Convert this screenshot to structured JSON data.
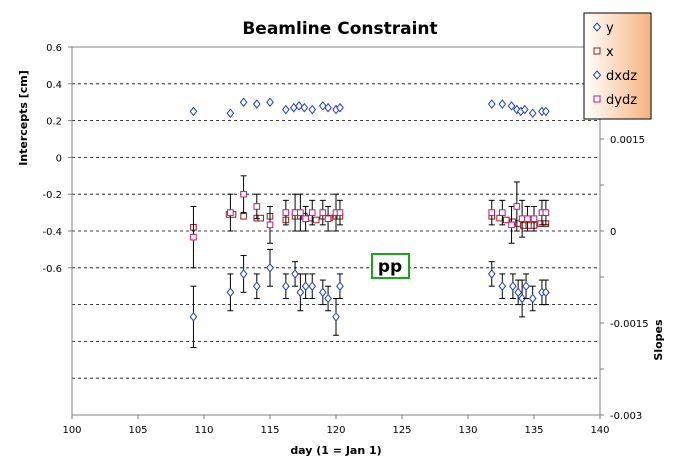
{
  "chart_data": {
    "type": "scatter",
    "title": "Beamline Constraint",
    "xlabel": "day (1 = Jan 1)",
    "ylabel_left": "Intercepts [cm]",
    "ylabel_right": "Slopes",
    "xlim": [
      100,
      140
    ],
    "xticks": [
      "100",
      "105",
      "110",
      "115",
      "120",
      "125",
      "130",
      "135",
      "140"
    ],
    "ylim_left": [
      -1.4,
      0.6
    ],
    "yticks_left": [
      "0.6",
      "0.4",
      "0.2",
      "0",
      "-0.2",
      "-0.4",
      "-0.6"
    ],
    "ylim_right": [
      -0.003,
      0.003
    ],
    "yticks_right": [
      "0.0015",
      "0",
      "-0.0015",
      "-0.003"
    ],
    "grid": true,
    "legend_position": "top-right",
    "annotation": "pp",
    "series": [
      {
        "name": "y",
        "axis": "left",
        "marker": "diamond",
        "color": "#1f3fbf",
        "points": [
          [
            109.2,
            0.25
          ],
          [
            112,
            0.24
          ],
          [
            113,
            0.3
          ],
          [
            114,
            0.29
          ],
          [
            115,
            0.3
          ],
          [
            116.2,
            0.26
          ],
          [
            116.8,
            0.27
          ],
          [
            117.2,
            0.28
          ],
          [
            117.6,
            0.27
          ],
          [
            118.2,
            0.26
          ],
          [
            119,
            0.28
          ],
          [
            119.4,
            0.27
          ],
          [
            120,
            0.26
          ],
          [
            120.3,
            0.27
          ],
          [
            131.8,
            0.29
          ],
          [
            132.6,
            0.29
          ],
          [
            133.3,
            0.28
          ],
          [
            133.7,
            0.26
          ],
          [
            134,
            0.25
          ],
          [
            134.3,
            0.26
          ],
          [
            134.9,
            0.24
          ],
          [
            135.6,
            0.25
          ],
          [
            135.9,
            0.25
          ]
        ]
      },
      {
        "name": "x",
        "axis": "left",
        "marker": "square",
        "color": "#9b1b1b",
        "points": [
          [
            109.2,
            -0.38
          ],
          [
            111.9,
            -0.31
          ],
          [
            112.2,
            -0.31
          ],
          [
            113,
            -0.32
          ],
          [
            114,
            -0.33
          ],
          [
            114.3,
            -0.33
          ],
          [
            115,
            -0.32
          ],
          [
            116.2,
            -0.34
          ],
          [
            116.9,
            -0.32
          ],
          [
            117.3,
            -0.32
          ],
          [
            117.6,
            -0.32
          ],
          [
            118,
            -0.33
          ],
          [
            118.5,
            -0.34
          ],
          [
            119,
            -0.32
          ],
          [
            119.5,
            -0.33
          ],
          [
            120,
            -0.32
          ],
          [
            120.3,
            -0.32
          ],
          [
            131.8,
            -0.32
          ],
          [
            132.4,
            -0.33
          ],
          [
            132.9,
            -0.34
          ],
          [
            133.4,
            -0.35
          ],
          [
            133.8,
            -0.36
          ],
          [
            134.2,
            -0.37
          ],
          [
            134.6,
            -0.37
          ],
          [
            135,
            -0.37
          ],
          [
            135.5,
            -0.36
          ],
          [
            135.9,
            -0.36
          ]
        ]
      },
      {
        "name": "dxdz",
        "axis": "right",
        "marker": "diamond",
        "color": "#1f3fbf",
        "points": [
          [
            109.2,
            -0.0014,
            0.0005
          ],
          [
            112,
            -0.001,
            0.0003
          ],
          [
            113,
            -0.0007,
            0.0003
          ],
          [
            114,
            -0.0009,
            0.0002
          ],
          [
            115,
            -0.0006,
            0.0003
          ],
          [
            116.2,
            -0.0009,
            0.0002
          ],
          [
            116.9,
            -0.0007,
            0.0002
          ],
          [
            117.3,
            -0.001,
            0.0003
          ],
          [
            117.7,
            -0.0009,
            0.0002
          ],
          [
            118.2,
            -0.0009,
            0.0002
          ],
          [
            119,
            -0.001,
            0.0002
          ],
          [
            119.4,
            -0.0011,
            0.0002
          ],
          [
            120,
            -0.0014,
            0.0003
          ],
          [
            120.3,
            -0.0009,
            0.0002
          ],
          [
            131.8,
            -0.0007,
            0.0002
          ],
          [
            132.6,
            -0.0009,
            0.0002
          ],
          [
            133.4,
            -0.0009,
            0.0002
          ],
          [
            133.8,
            -0.001,
            0.0002
          ],
          [
            134.1,
            -0.0011,
            0.0003
          ],
          [
            134.4,
            -0.0009,
            0.0002
          ],
          [
            134.9,
            -0.0011,
            0.0002
          ],
          [
            135.6,
            -0.001,
            0.0002
          ],
          [
            135.9,
            -0.001,
            0.0002
          ]
        ]
      },
      {
        "name": "dydz",
        "axis": "right",
        "marker": "square",
        "color": "#c0197a",
        "points": [
          [
            109.2,
            -0.0001,
            0.0005
          ],
          [
            112,
            0.0003,
            0.0003
          ],
          [
            113,
            0.0006,
            0.0003
          ],
          [
            114,
            0.0004,
            0.0002
          ],
          [
            115,
            0.0001,
            0.0003
          ],
          [
            116.2,
            0.0003,
            0.0002
          ],
          [
            116.9,
            0.0003,
            0.0003
          ],
          [
            117.3,
            0.0003,
            0.0003
          ],
          [
            117.7,
            0.0002,
            0.0002
          ],
          [
            118.2,
            0.0003,
            0.0002
          ],
          [
            119,
            0.0003,
            0.0002
          ],
          [
            119.4,
            0.0002,
            0.0002
          ],
          [
            120,
            0.0003,
            0.0003
          ],
          [
            120.3,
            0.0003,
            0.0002
          ],
          [
            131.8,
            0.0003,
            0.0002
          ],
          [
            132.6,
            0.0003,
            0.0002
          ],
          [
            133.3,
            0.0001,
            0.0003
          ],
          [
            133.7,
            0.0004,
            0.0004
          ],
          [
            134.1,
            0.0002,
            0.0003
          ],
          [
            134.5,
            0.0002,
            0.0002
          ],
          [
            135,
            0.0002,
            0.0002
          ],
          [
            135.6,
            0.0003,
            0.0002
          ],
          [
            135.9,
            0.0003,
            0.0002
          ]
        ]
      }
    ]
  }
}
